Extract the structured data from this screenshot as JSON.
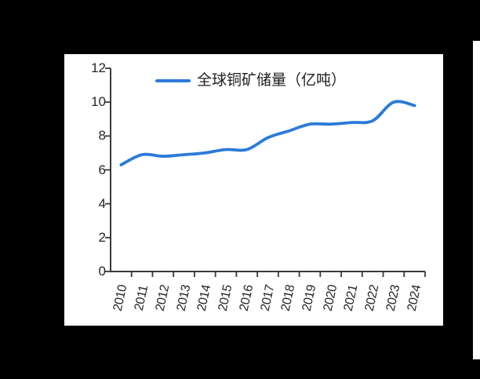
{
  "colors": {
    "background": "#000000",
    "panel": "#ffffff",
    "line": "#2b7bd9",
    "axis": "#3a3a3a",
    "text": "#262626"
  },
  "chart_data": {
    "type": "line",
    "title": "",
    "legend_position": "top",
    "grid": false,
    "xlabel": "",
    "ylabel": "",
    "ylim": [
      0,
      12
    ],
    "yticks": [
      0,
      2,
      4,
      6,
      8,
      10,
      12
    ],
    "categories": [
      "2010",
      "2011",
      "2012",
      "2013",
      "2014",
      "2015",
      "2016",
      "2017",
      "2018",
      "2019",
      "2020",
      "2021",
      "2022",
      "2023",
      "2024"
    ],
    "series": [
      {
        "name": "全球铜矿储量（亿吨）",
        "values": [
          6.3,
          6.9,
          6.8,
          6.9,
          7.0,
          7.2,
          7.2,
          7.9,
          8.3,
          8.7,
          8.7,
          8.8,
          8.9,
          10.0,
          9.8
        ]
      }
    ]
  }
}
